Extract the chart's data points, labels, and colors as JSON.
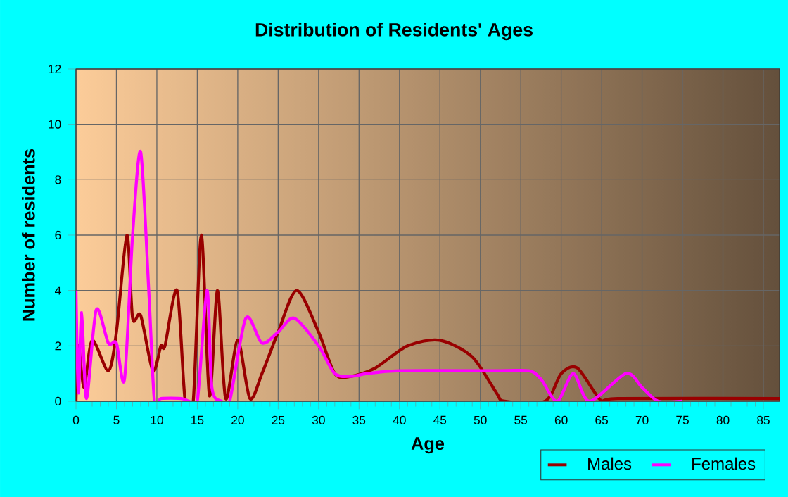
{
  "chart_data": {
    "type": "line",
    "title": "Distribution of Residents' Ages",
    "xlabel": "Age",
    "ylabel": "Number of residents",
    "xlim": [
      0,
      87
    ],
    "xticks": [
      0,
      5,
      10,
      15,
      20,
      25,
      30,
      35,
      40,
      45,
      50,
      55,
      60,
      65,
      70,
      75,
      80,
      85
    ],
    "ylim": [
      0,
      12
    ],
    "yticks": [
      0,
      2,
      4,
      6,
      8,
      10,
      12
    ],
    "grid": true,
    "legend": "bottom right",
    "series": [
      {
        "name": "Males",
        "color": "#990000",
        "x": [
          0,
          0.3,
          1,
          2,
          4,
          5,
          6.3,
          7,
          8,
          9.5,
          10.5,
          11,
          12.5,
          13.5,
          14.5,
          15.5,
          16.5,
          17.5,
          18.5,
          20,
          21.5,
          23,
          25,
          27.3,
          30,
          32,
          34,
          37,
          41,
          45,
          49,
          52,
          53,
          58,
          60,
          62,
          65,
          67,
          87
        ],
        "values": [
          0,
          2,
          0.5,
          2.2,
          1.1,
          2.5,
          6,
          3,
          3.1,
          1.1,
          2,
          2,
          4,
          0,
          0,
          6,
          0.2,
          4,
          0.1,
          2.2,
          0.1,
          1,
          2.5,
          4,
          2.5,
          1,
          0.9,
          1.2,
          2,
          2.2,
          1.6,
          0.3,
          0,
          0,
          1,
          1.2,
          0,
          0.1,
          0.1
        ]
      },
      {
        "name": "Females",
        "color": "#ff00ff",
        "x": [
          0,
          0.3,
          0.7,
          1.3,
          2.5,
          4,
          5,
          6,
          7,
          8,
          9,
          9.7,
          10.5,
          13,
          14,
          15,
          16.2,
          16.8,
          18,
          19,
          21,
          23,
          25,
          27,
          30,
          32,
          34,
          36,
          40,
          52,
          56,
          57.5,
          59.5,
          61.5,
          63.5,
          68,
          70,
          72,
          75
        ],
        "values": [
          4,
          0.3,
          3.2,
          0.1,
          3.3,
          2.1,
          2.1,
          0.8,
          6,
          9,
          4,
          0,
          0.1,
          0.1,
          0,
          0,
          4,
          0.5,
          0,
          0,
          3,
          2.1,
          2.5,
          3,
          2,
          1,
          0.9,
          1,
          1.1,
          1.1,
          1.1,
          0.8,
          0,
          1,
          0,
          1,
          0.5,
          0,
          0
        ]
      }
    ]
  }
}
